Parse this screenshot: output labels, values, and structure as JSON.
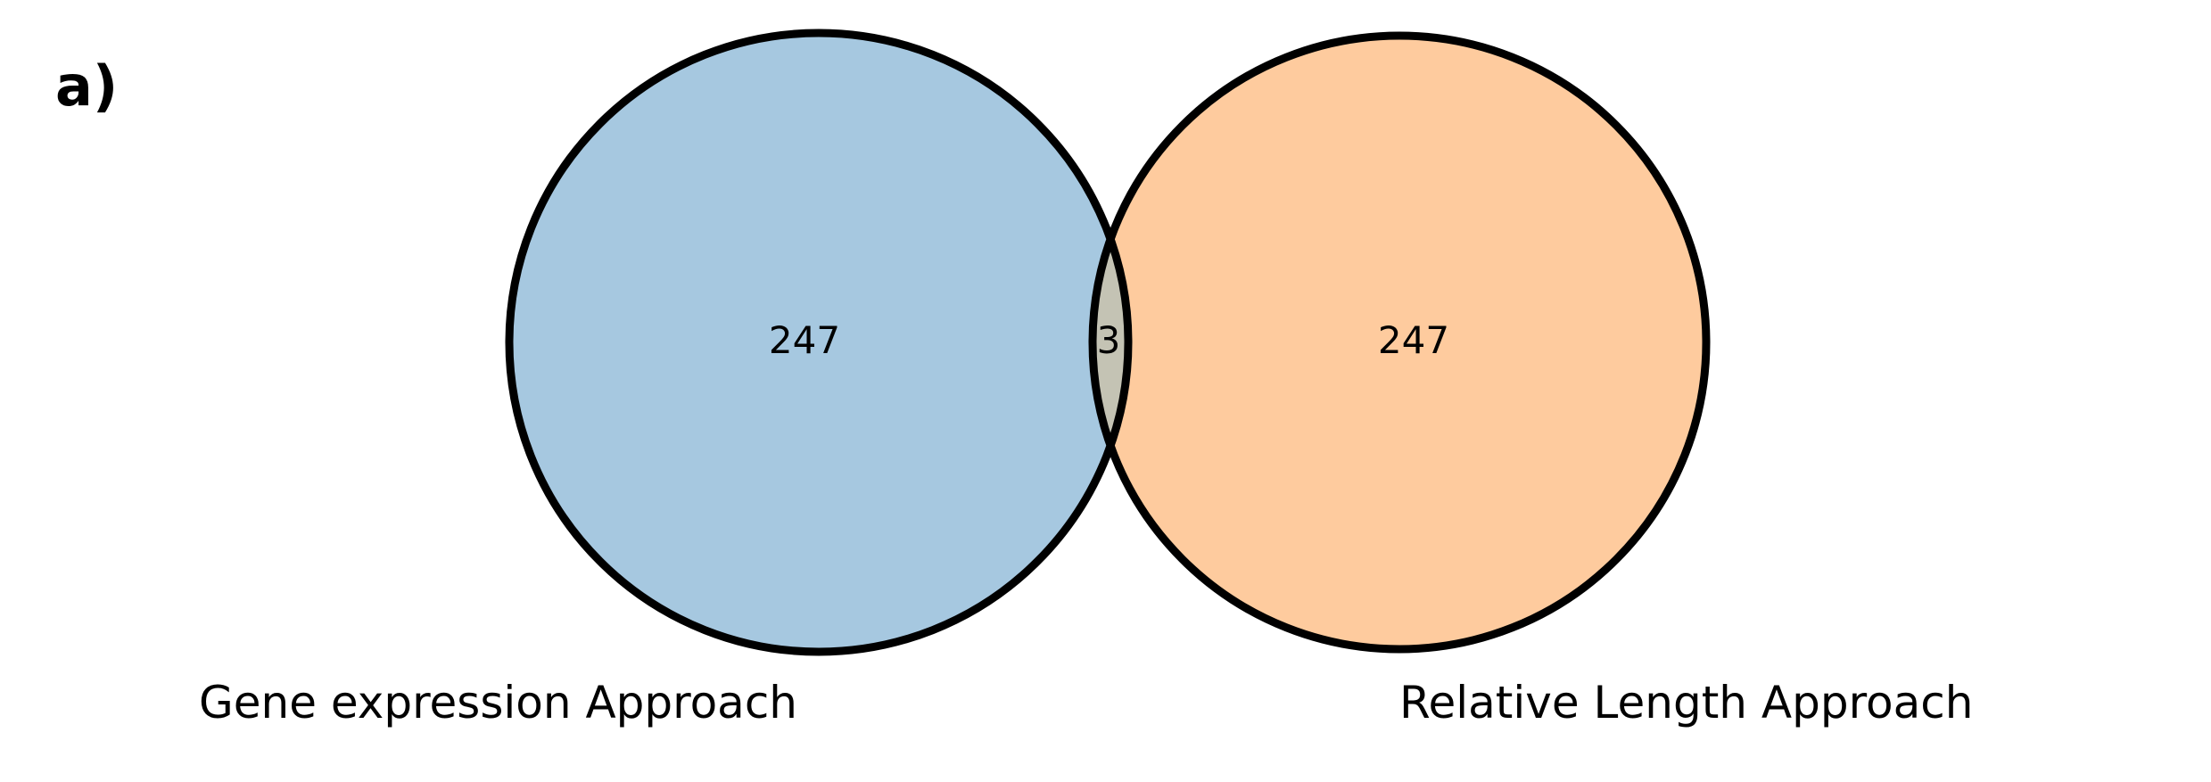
{
  "panel_label": "a)",
  "venn": {
    "sets": [
      {
        "label": "Gene expression Approach",
        "only_count": "247",
        "color": "#a6c8e0"
      },
      {
        "label": "Relative Length Approach",
        "only_count": "247",
        "color": "#fecb9e"
      }
    ],
    "intersection_count": "3",
    "intersection_color": "#c4c3b4",
    "outline_color": "#000000"
  }
}
